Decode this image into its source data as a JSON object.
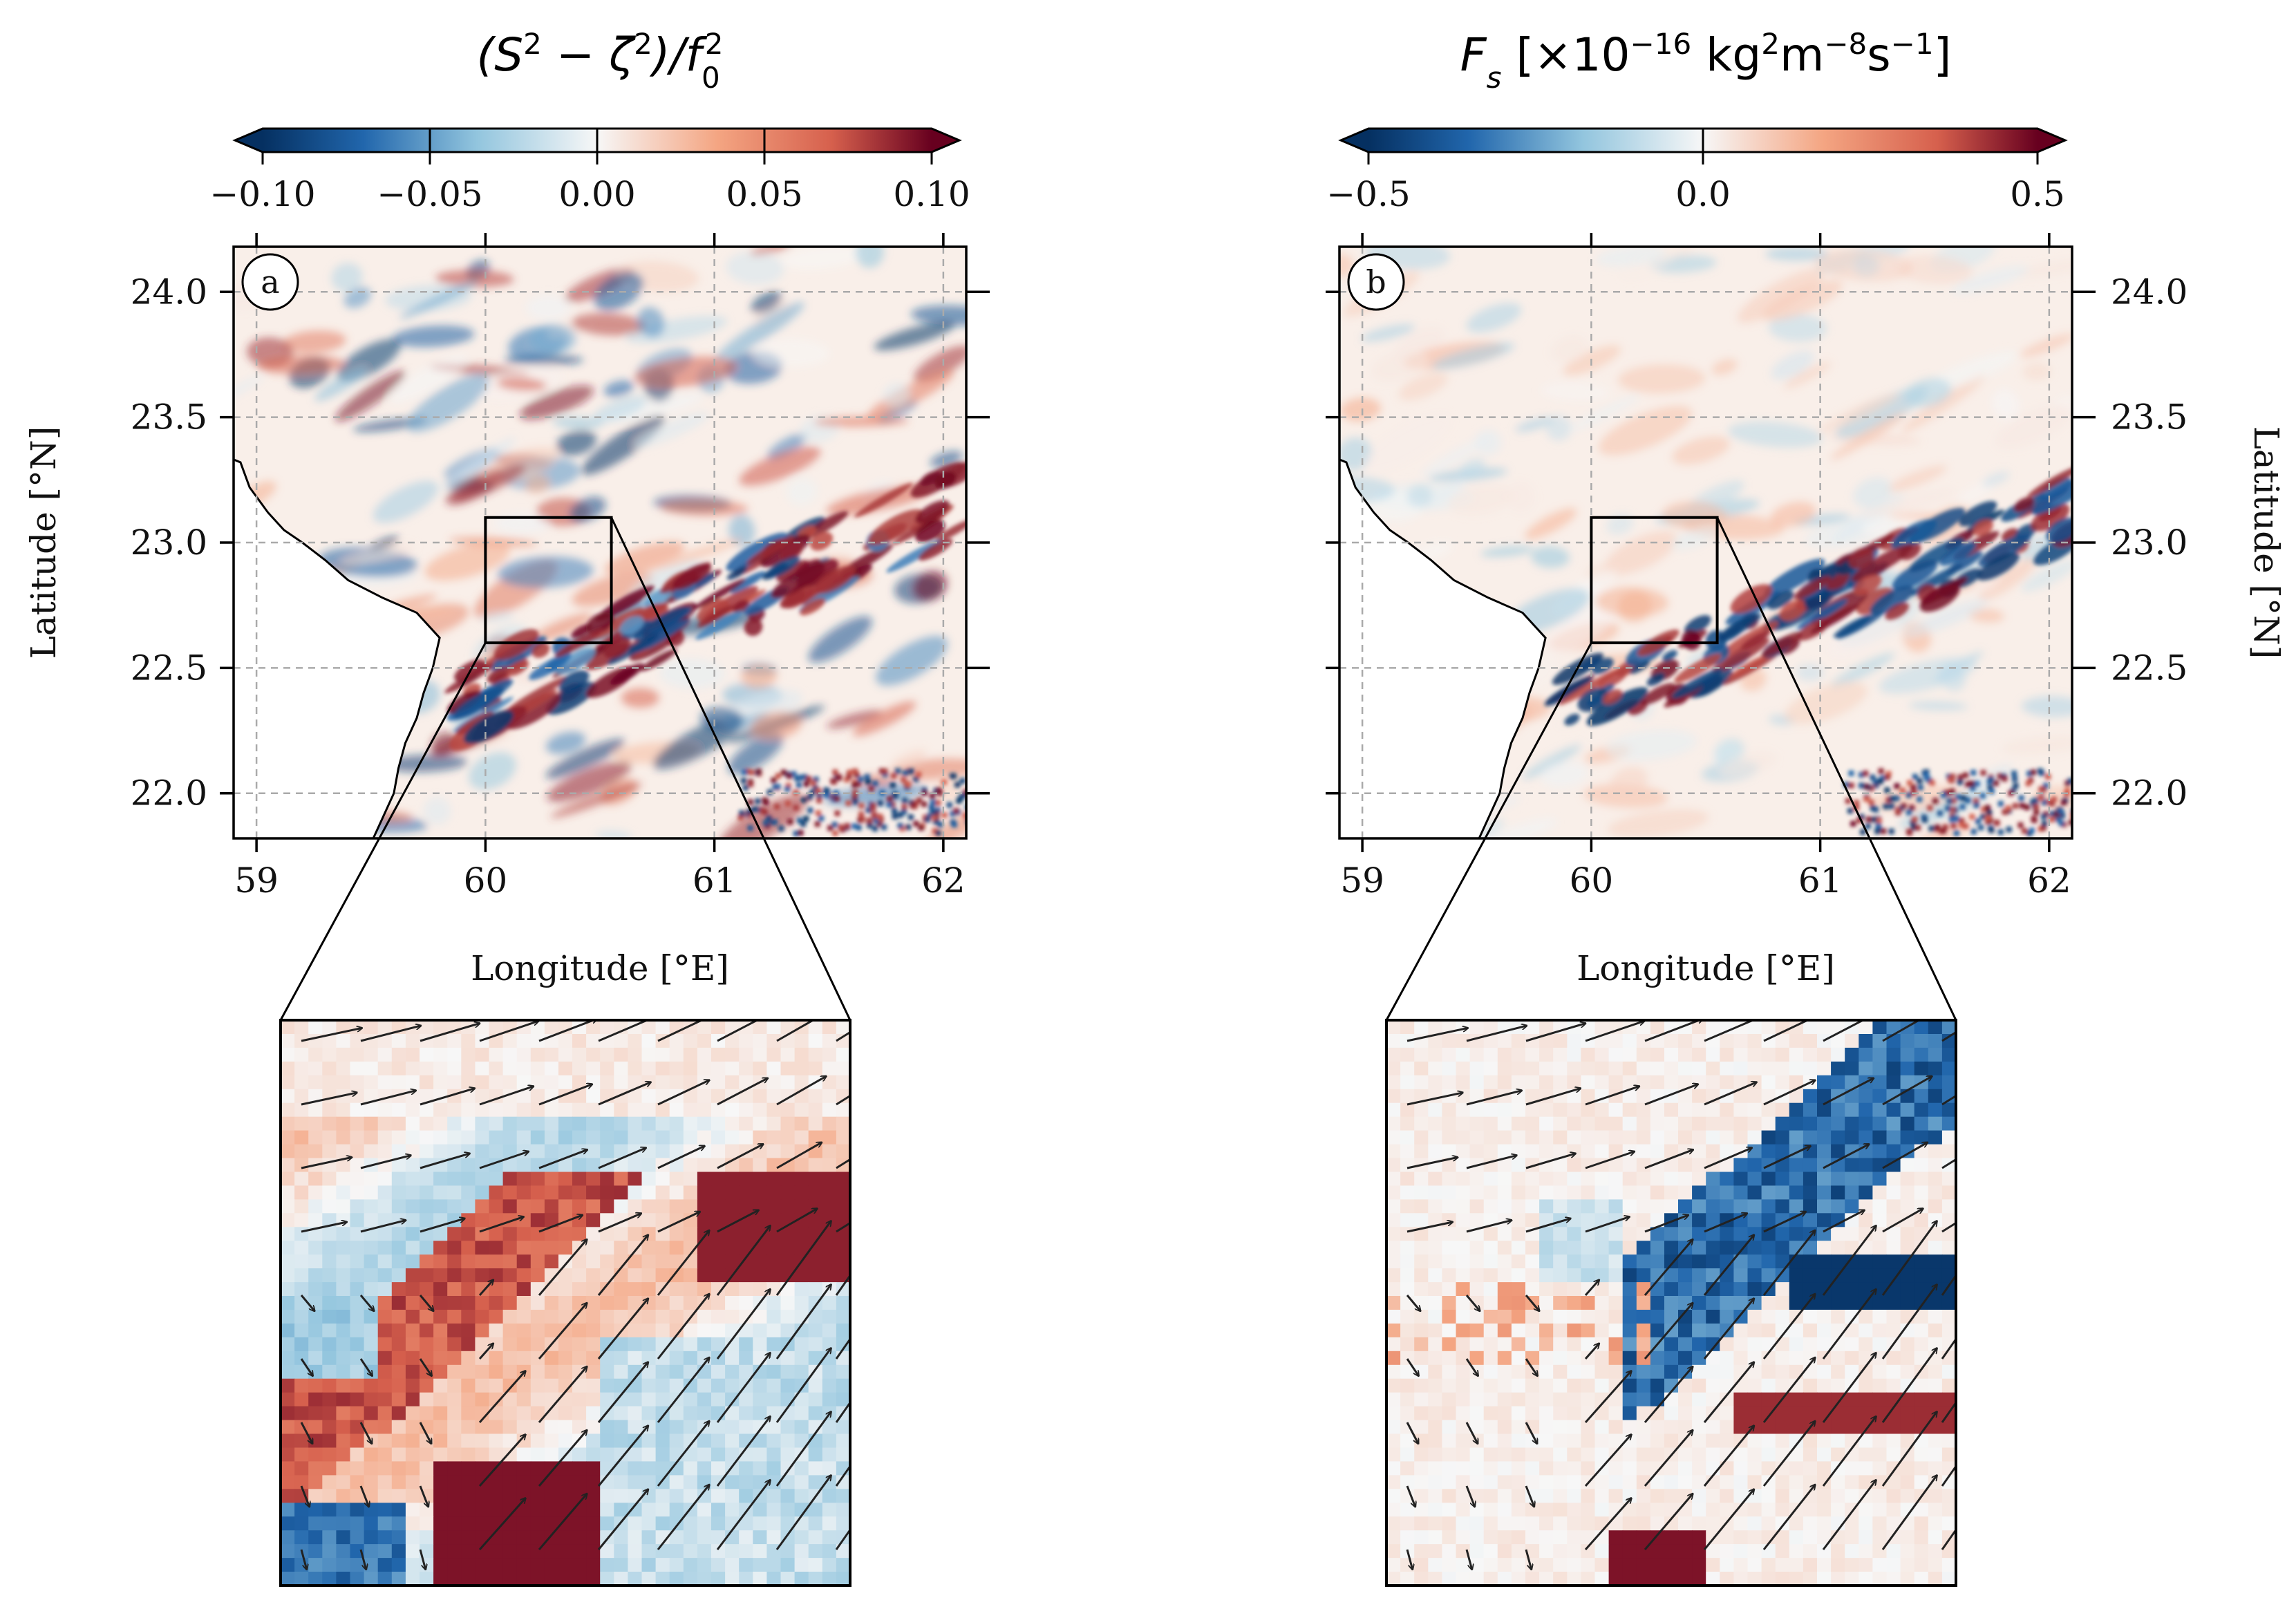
{
  "figure": {
    "panels": 2
  },
  "chart_data": [
    {
      "id": "a",
      "type": "heatmap",
      "panel_label": "a",
      "title_base": "(S",
      "title_sup1": "2",
      "title_mid": " − ζ",
      "title_sup2": "2",
      "title_div": ")/f",
      "title_sub": "0",
      "title_sup3": "2",
      "colorbar": {
        "cmap": "RdBu_r",
        "range": [
          -0.1,
          0.1
        ],
        "extend": "both",
        "ticks": [
          -0.1,
          -0.05,
          0.0,
          0.05,
          0.1
        ],
        "tick_labels": [
          "−0.10",
          "−0.05",
          "0.00",
          "0.05",
          "0.10"
        ]
      },
      "xlim": [
        58.9,
        62.1
      ],
      "ylim": [
        21.82,
        24.18
      ],
      "x_ticks": [
        59,
        60,
        61,
        62
      ],
      "x_tick_labels": [
        "59",
        "60",
        "61",
        "62"
      ],
      "y_ticks": [
        22.0,
        22.5,
        23.0,
        23.5,
        24.0
      ],
      "y_tick_labels": [
        "22.0",
        "22.5",
        "23.0",
        "23.5",
        "24.0"
      ],
      "xlabel": "Longitude [°E]",
      "ylabel": "Latitude [°N]",
      "ylabel_side": "left",
      "grid": true,
      "zoom_box": {
        "lon": [
          60.0,
          60.55
        ],
        "lat": [
          22.6,
          23.1
        ]
      },
      "inset": {
        "content": "zoomed field with velocity vectors"
      }
    },
    {
      "id": "b",
      "type": "heatmap",
      "panel_label": "b",
      "title_base": "F",
      "title_sub": "s",
      "title_units_pre": " [×10",
      "title_exp": "−16",
      "title_units_mid": " kg",
      "title_sup_kg": "2",
      "title_units_m": "m",
      "title_sup_m": "−8",
      "title_units_s": "s",
      "title_sup_s": "−1",
      "title_units_end": "]",
      "colorbar": {
        "cmap": "RdBu_r",
        "range": [
          -0.5,
          0.5
        ],
        "extend": "both",
        "ticks": [
          -0.5,
          0.0,
          0.5
        ],
        "tick_labels": [
          "−0.5",
          "0.0",
          "0.5"
        ]
      },
      "xlim": [
        58.9,
        62.1
      ],
      "ylim": [
        21.82,
        24.18
      ],
      "x_ticks": [
        59,
        60,
        61,
        62
      ],
      "x_tick_labels": [
        "59",
        "60",
        "61",
        "62"
      ],
      "y_ticks": [
        22.0,
        22.5,
        23.0,
        23.5,
        24.0
      ],
      "y_tick_labels": [
        "22.0",
        "22.5",
        "23.0",
        "23.5",
        "24.0"
      ],
      "xlabel": "Longitude [°E]",
      "ylabel": "Latitude [°N]",
      "ylabel_side": "right",
      "grid": true,
      "zoom_box": {
        "lon": [
          60.0,
          60.55
        ],
        "lat": [
          22.6,
          23.1
        ]
      },
      "inset": {
        "content": "zoomed field with velocity vectors"
      }
    }
  ],
  "colors": {
    "deep_blue": "#053061",
    "mid_blue": "#2166ac",
    "light_blue": "#92c5de",
    "white": "#f7f7f7",
    "light_red": "#f4a582",
    "mid_red": "#d6604d",
    "deep_red": "#67001f",
    "land": "#ffffff",
    "grid": "#aaaaaa",
    "arrow": "#222222"
  }
}
